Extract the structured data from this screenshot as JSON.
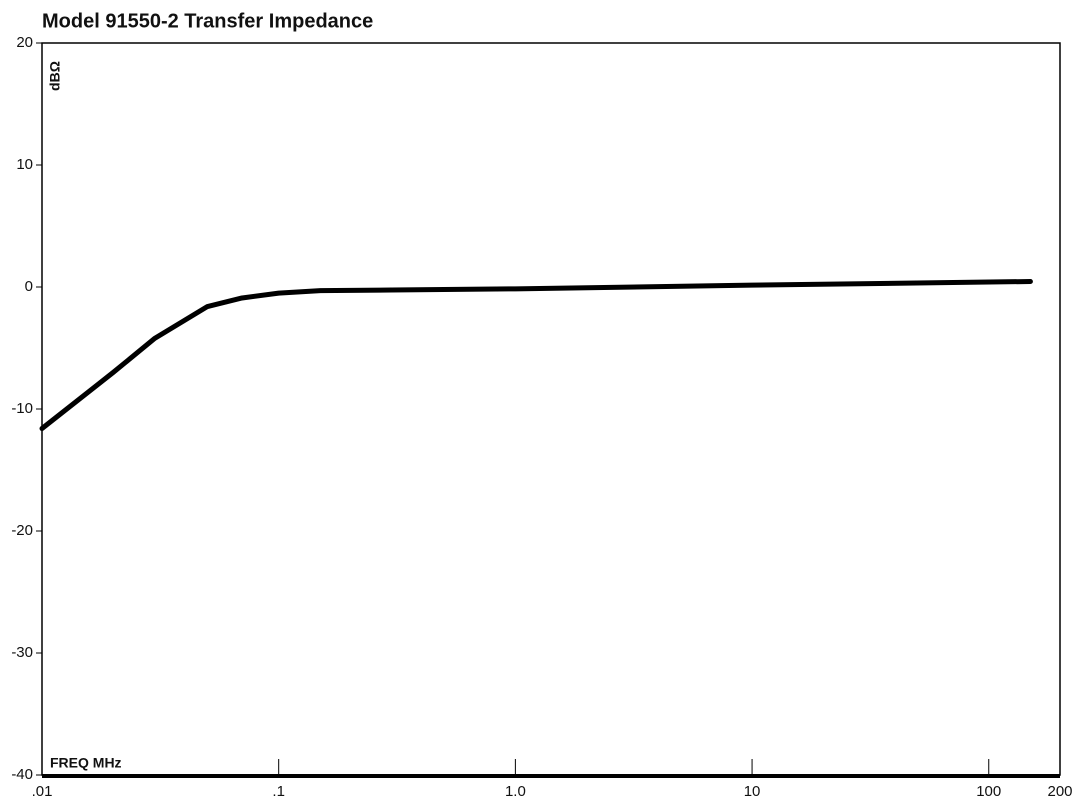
{
  "chart_data": {
    "type": "line",
    "title": "Model 91550-2   Transfer Impedance",
    "y_label": "dBΩ",
    "x_label": "FREQ MHz",
    "x_scale": "log",
    "x": [
      0.01,
      0.02,
      0.03,
      0.05,
      0.07,
      0.1,
      0.15,
      0.3,
      1,
      10,
      150
    ],
    "series": [
      {
        "name": "Transfer Impedance",
        "color": "#000000",
        "values": [
          -11.6,
          -7,
          -4.2,
          -1.6,
          -0.9,
          -0.5,
          -0.3,
          -0.25,
          -0.15,
          0.15,
          0.45
        ]
      }
    ],
    "xlim": [
      0.01,
      200
    ],
    "xticks": [
      {
        "value": 0.01,
        "label": ".01"
      },
      {
        "value": 0.1,
        "label": ".1"
      },
      {
        "value": 1,
        "label": "1.0"
      },
      10,
      100,
      200
    ],
    "ylim": [
      -40,
      20
    ],
    "yticks": [
      -40,
      -30,
      -20,
      -10,
      0,
      10,
      20
    ],
    "grid": false
  }
}
